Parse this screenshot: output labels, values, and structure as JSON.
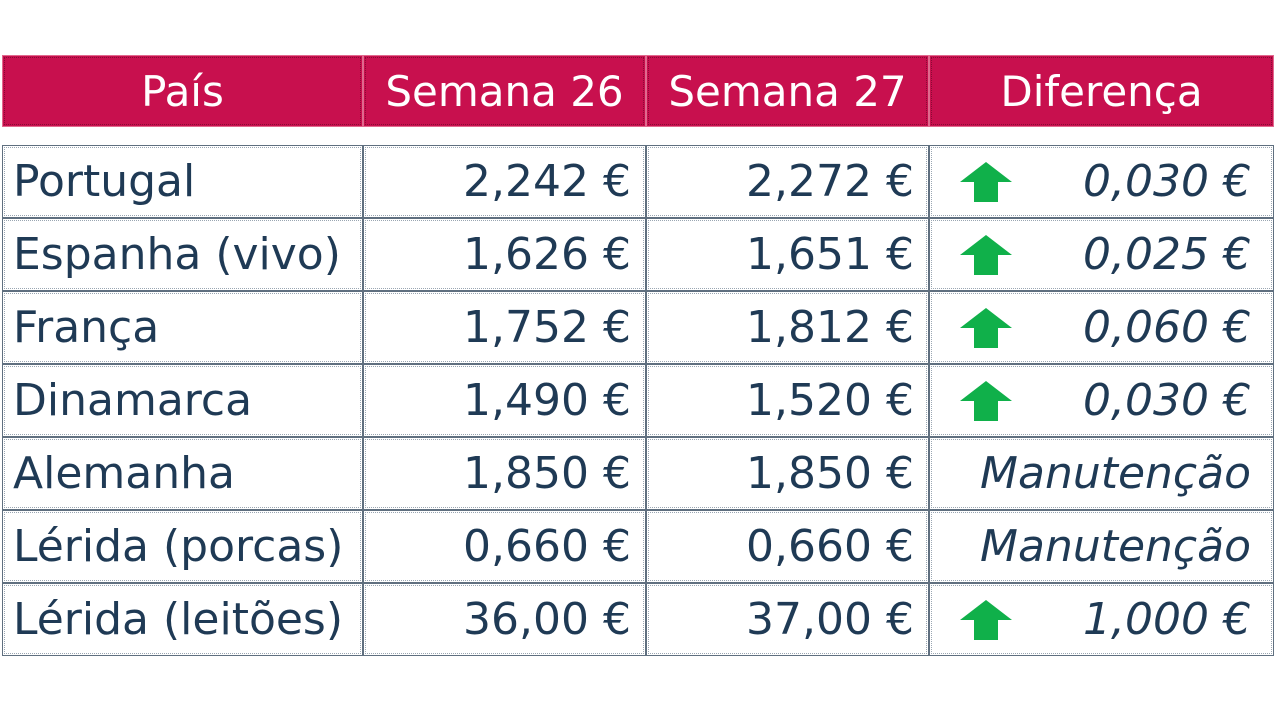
{
  "header": {
    "country": "País",
    "week26": "Semana 26",
    "week27": "Semana 27",
    "diff": "Diferença"
  },
  "colors": {
    "header_bg": "#c8104e",
    "text": "#1f3a55",
    "arrow_up": "#10b04a"
  },
  "rows": [
    {
      "country": "Portugal",
      "w26": "2,242 €",
      "w27": "2,272 €",
      "diff": "0,030 €",
      "icon": "arrow-up-icon"
    },
    {
      "country": "Espanha (vivo)",
      "w26": "1,626 €",
      "w27": "1,651 €",
      "diff": "0,025 €",
      "icon": "arrow-up-icon"
    },
    {
      "country": "França",
      "w26": "1,752 €",
      "w27": "1,812 €",
      "diff": "0,060 €",
      "icon": "arrow-up-icon"
    },
    {
      "country": "Dinamarca",
      "w26": "1,490 €",
      "w27": "1,520 €",
      "diff": "0,030 €",
      "icon": "arrow-up-icon"
    },
    {
      "country": "Alemanha",
      "w26": "1,850 €",
      "w27": "1,850 €",
      "diff": "Manutenção",
      "icon": ""
    },
    {
      "country": "Lérida (porcas)",
      "w26": "0,660 €",
      "w27": "0,660 €",
      "diff": "Manutenção",
      "icon": ""
    },
    {
      "country": "Lérida (leitões)",
      "w26": "36,00 €",
      "w27": "37,00 €",
      "diff": "1,000 €",
      "icon": "arrow-up-icon"
    }
  ]
}
